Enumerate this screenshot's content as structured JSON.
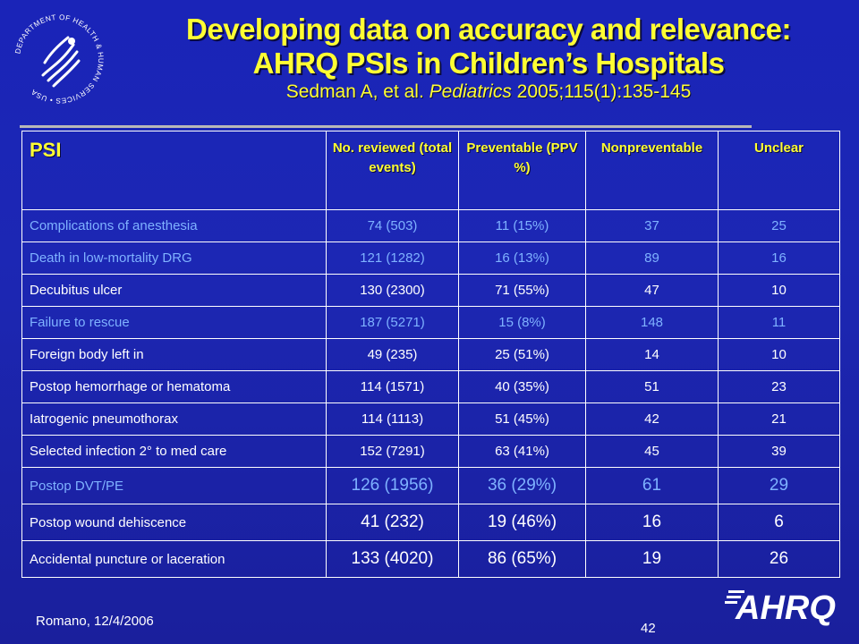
{
  "header": {
    "title_line1": "Developing data on accuracy and relevance:",
    "title_line2": "AHRQ PSIs in Children’s Hospitals",
    "citation_authors": "Sedman A, et al. ",
    "citation_journal": "Pediatrics",
    "citation_rest": " 2005;115(1):135-145"
  },
  "logo_text": "DEPARTMENT OF HEALTH & HUMAN SERVICES • USA",
  "ahrq_logo_text": "AHRQ",
  "table": {
    "headers": [
      "PSI",
      "No. reviewed (total events)",
      "Preventable (PPV %)",
      "Nonpreventable",
      "Unclear"
    ],
    "rows": [
      [
        "Complications of anesthesia",
        "74 (503)",
        "11 (15%)",
        "37",
        "25"
      ],
      [
        "Death in low-mortality DRG",
        "121 (1282)",
        "16 (13%)",
        "89",
        "16"
      ],
      [
        "Decubitus ulcer",
        "130 (2300)",
        "71 (55%)",
        "47",
        "10"
      ],
      [
        "Failure to rescue",
        "187 (5271)",
        "15 (8%)",
        "148",
        "11"
      ],
      [
        "Foreign body left in",
        "49 (235)",
        "25 (51%)",
        "14",
        "10"
      ],
      [
        "Postop hemorrhage or hematoma",
        "114 (1571)",
        "40 (35%)",
        "51",
        "23"
      ],
      [
        "Iatrogenic pneumothorax",
        "114 (1113)",
        "51 (45%)",
        "42",
        "21"
      ],
      [
        "Selected infection 2° to med care",
        "152 (7291)",
        "63 (41%)",
        "45",
        "39"
      ],
      [
        "Postop DVT/PE",
        "126 (1956)",
        "36 (29%)",
        "61",
        "29"
      ],
      [
        "Postop wound dehiscence",
        "41 (232)",
        "19 (46%)",
        "16",
        "6"
      ],
      [
        "Accidental puncture or laceration",
        "133 (4020)",
        "86 (65%)",
        "19",
        "26"
      ]
    ]
  },
  "footer": {
    "author_date": "Romano, 12/4/2006",
    "page_number": "42"
  },
  "colors": {
    "background": "#1c27b4",
    "title": "#ffff33",
    "light_row_text": "#7fb2ff"
  }
}
